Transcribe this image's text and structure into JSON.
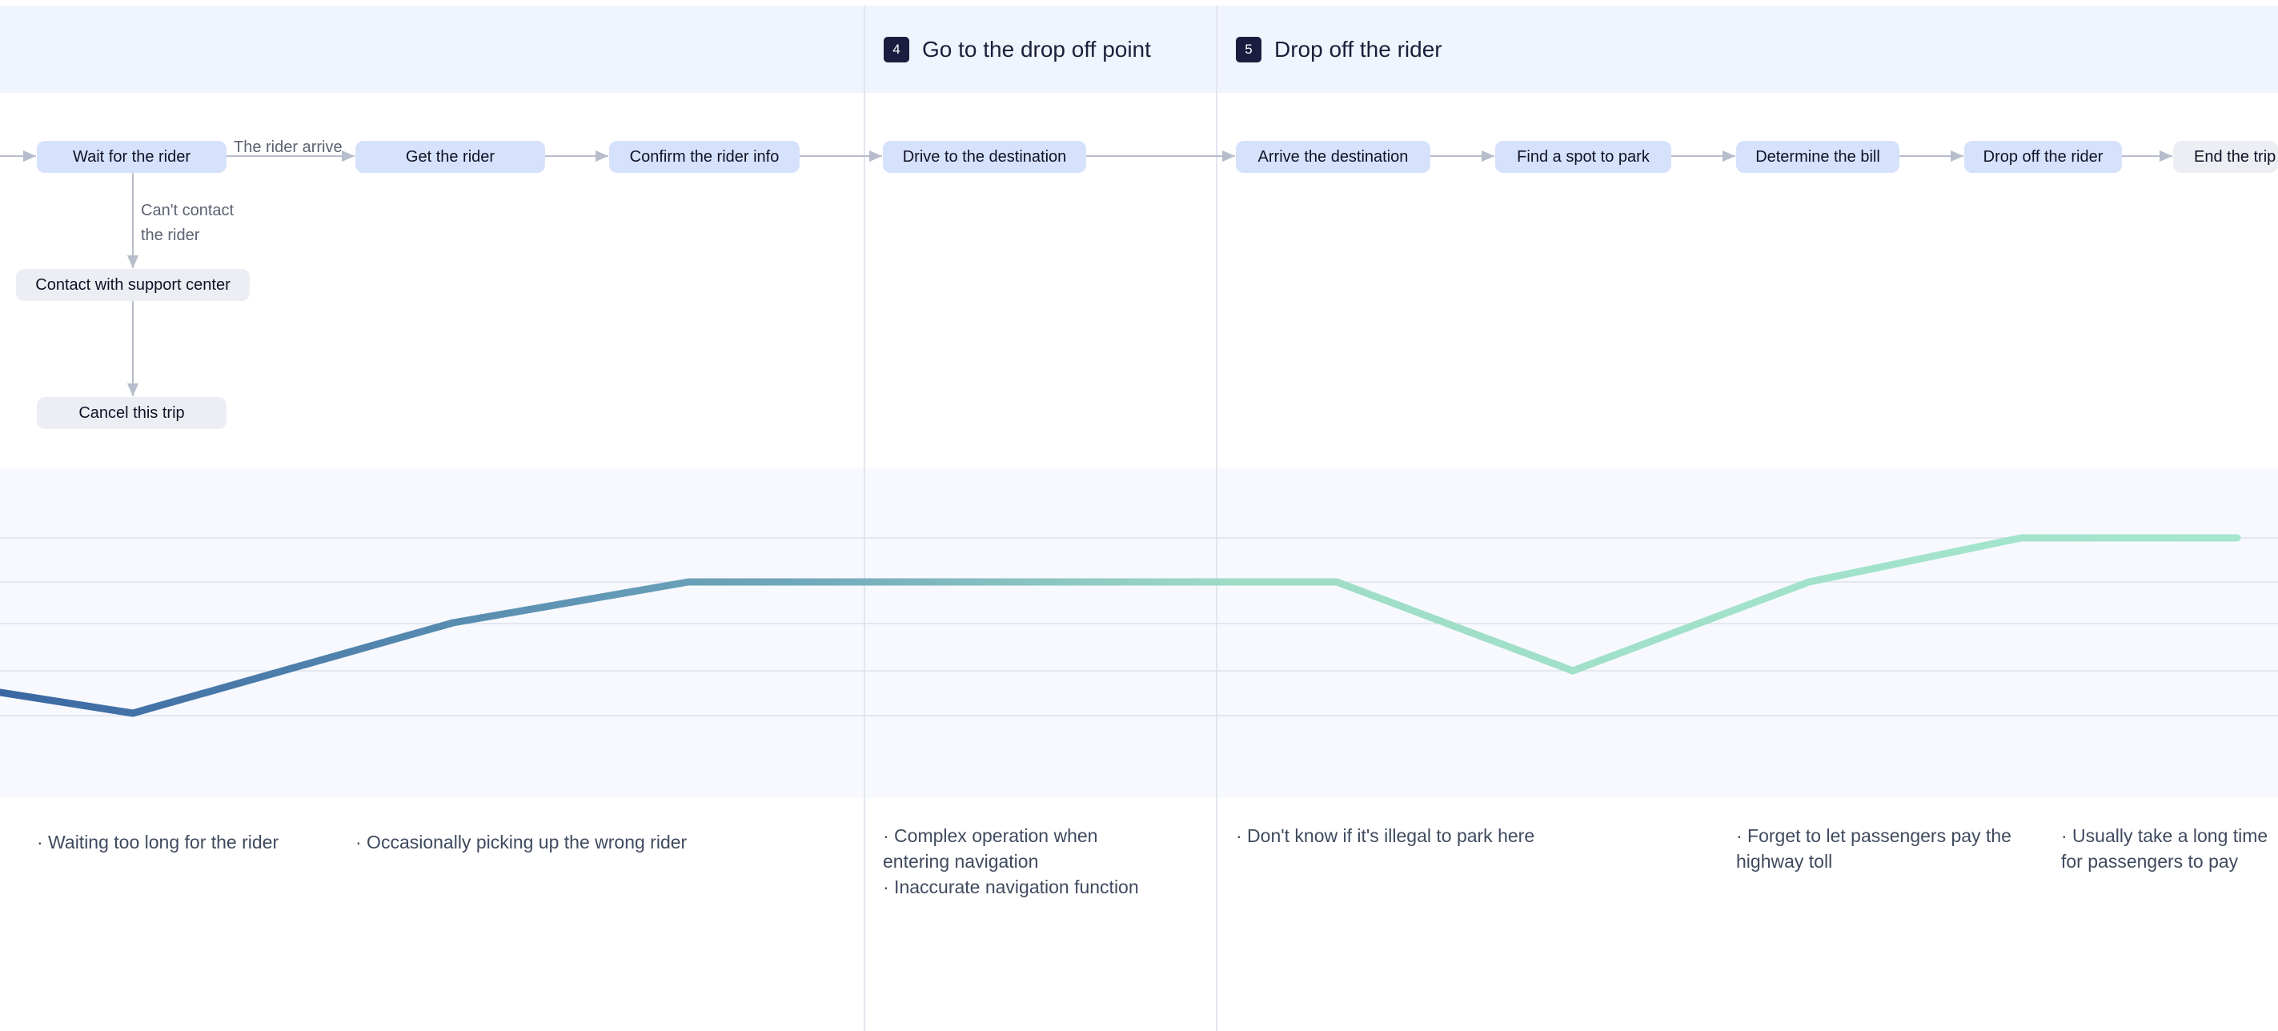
{
  "stages": [
    {
      "number": "4",
      "title": "Go to the drop off point"
    },
    {
      "number": "5",
      "title": "Drop off the rider"
    }
  ],
  "steps": [
    {
      "id": "wait",
      "label": "Wait for the rider"
    },
    {
      "id": "get",
      "label": "Get the rider"
    },
    {
      "id": "confirm",
      "label": "Confirm the rider info"
    },
    {
      "id": "drive",
      "label": "Drive to the destination"
    },
    {
      "id": "arrive",
      "label": "Arrive the destination"
    },
    {
      "id": "park",
      "label": "Find a spot to park"
    },
    {
      "id": "bill",
      "label": "Determine the bill"
    },
    {
      "id": "dropoff",
      "label": "Drop off the rider"
    },
    {
      "id": "end",
      "label": "End the trip"
    }
  ],
  "alt_steps": [
    {
      "id": "support",
      "label": "Contact with support center"
    },
    {
      "id": "cancel",
      "label": "Cancel this trip"
    }
  ],
  "edge_labels": {
    "rider_arrive": "The rider arrive",
    "cant_contact_line1": "Can't contact",
    "cant_contact_line2": "the rider"
  },
  "pain_points": [
    {
      "id": "wait",
      "lines": [
        "· Waiting too long for the rider"
      ]
    },
    {
      "id": "get",
      "lines": [
        "· Occasionally picking up the wrong rider"
      ]
    },
    {
      "id": "drive",
      "lines": [
        "· Complex operation when",
        "entering navigation",
        "· Inaccurate navigation function"
      ]
    },
    {
      "id": "arrive",
      "lines": [
        "· Don't know if it's illegal to park here"
      ]
    },
    {
      "id": "bill",
      "lines": [
        "· Forget to let passengers pay the",
        "highway toll"
      ]
    },
    {
      "id": "dropoff",
      "lines": [
        "· Usually take a long time",
        "for passengers to pay"
      ]
    }
  ],
  "emotion_curve": {
    "levels": 5,
    "points": [
      {
        "step": "before-wait",
        "level": 1.5
      },
      {
        "step": "wait",
        "level": 1
      },
      {
        "step": "get",
        "level": 4
      },
      {
        "step": "confirm",
        "level": 5
      },
      {
        "step": "arrive",
        "level": 5
      },
      {
        "step": "park",
        "level": 2
      },
      {
        "step": "bill",
        "level": 5
      },
      {
        "step": "dropoff",
        "level": 6
      },
      {
        "step": "end",
        "level": 6
      }
    ],
    "gradient_colors": [
      "#3a67a2",
      "#6ea7bb",
      "#9edcc6",
      "#a5e6cf"
    ],
    "band_color": "#f7f9fe",
    "grid_color": "#dde1ea"
  },
  "colors": {
    "step_fill": "#d6e1fb",
    "alt_fill": "#eceef3",
    "arrow": "#b8bdcc",
    "stage_badge": "#1a1d3f",
    "header_band": "#f0f4fd"
  }
}
